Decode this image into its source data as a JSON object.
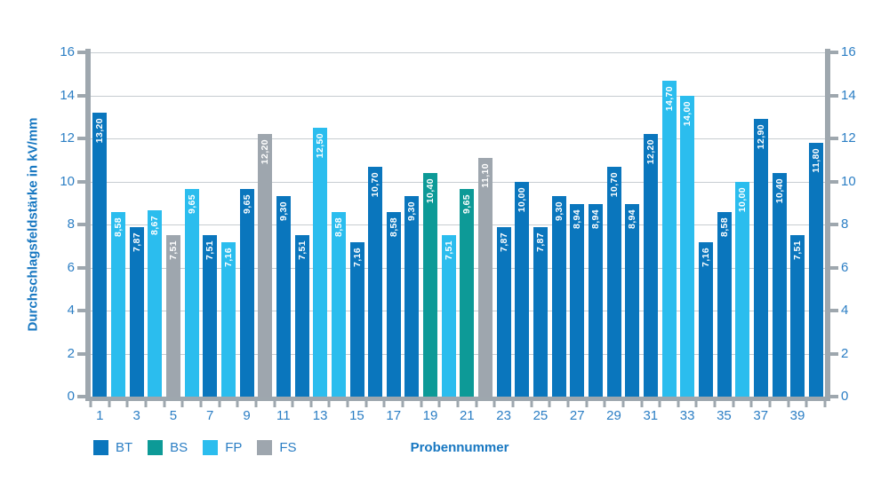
{
  "chart_data": {
    "type": "bar",
    "title": "",
    "ylabel": "Durchschlagsfeldstärke in kV/mm",
    "xlabel": "Probennummer",
    "ylim": [
      0,
      16
    ],
    "yticks": [
      0,
      2,
      4,
      6,
      8,
      10,
      12,
      14,
      16
    ],
    "grid": "horizontal gridlines at even values, dual y-axes (left and right)",
    "legend_position": "bottom-left",
    "legend": [
      "BT",
      "BS",
      "FP",
      "FS"
    ],
    "series_colors": {
      "BT": "#0A76BD",
      "BS": "#0D9A97",
      "FP": "#2BBDEE",
      "FS": "#9EA6AE"
    },
    "x_tick_labels": [
      "1",
      "3",
      "5",
      "7",
      "9",
      "11",
      "13",
      "15",
      "17",
      "19",
      "21",
      "23",
      "25",
      "27",
      "29",
      "31",
      "33",
      "35",
      "37",
      "39"
    ],
    "bars": [
      {
        "probe": 1,
        "series": "BT",
        "value": 13.2,
        "label": "13,20"
      },
      {
        "probe": 2,
        "series": "FP",
        "value": 8.58,
        "label": "8,58"
      },
      {
        "probe": 3,
        "series": "BT",
        "value": 7.87,
        "label": "7,87"
      },
      {
        "probe": 4,
        "series": "FP",
        "value": 8.67,
        "label": "8,67"
      },
      {
        "probe": 5,
        "series": "FS",
        "value": 7.51,
        "label": "7,51"
      },
      {
        "probe": 6,
        "series": "FP",
        "value": 9.65,
        "label": "9,65"
      },
      {
        "probe": 7,
        "series": "BT",
        "value": 7.51,
        "label": "7,51"
      },
      {
        "probe": 8,
        "series": "FP",
        "value": 7.16,
        "label": "7,16"
      },
      {
        "probe": 9,
        "series": "BT",
        "value": 9.65,
        "label": "9,65"
      },
      {
        "probe": 10,
        "series": "FS",
        "value": 12.2,
        "label": "12,20"
      },
      {
        "probe": 11,
        "series": "BT",
        "value": 9.3,
        "label": "9,30"
      },
      {
        "probe": 12,
        "series": "BT",
        "value": 7.51,
        "label": "7,51"
      },
      {
        "probe": 13,
        "series": "FP",
        "value": 12.5,
        "label": "12,50"
      },
      {
        "probe": 14,
        "series": "FP",
        "value": 8.58,
        "label": "8,58"
      },
      {
        "probe": 15,
        "series": "BT",
        "value": 7.16,
        "label": "7,16"
      },
      {
        "probe": 16,
        "series": "BT",
        "value": 10.7,
        "label": "10,70"
      },
      {
        "probe": 17,
        "series": "BT",
        "value": 8.58,
        "label": "8,58"
      },
      {
        "probe": 18,
        "series": "BT",
        "value": 9.3,
        "label": "9,30"
      },
      {
        "probe": 19,
        "series": "BS",
        "value": 10.4,
        "label": "10,40"
      },
      {
        "probe": 20,
        "series": "FP",
        "value": 7.51,
        "label": "7,51"
      },
      {
        "probe": 21,
        "series": "BS",
        "value": 9.65,
        "label": "9,65"
      },
      {
        "probe": 22,
        "series": "FS",
        "value": 11.1,
        "label": "11,10"
      },
      {
        "probe": 23,
        "series": "BT",
        "value": 7.87,
        "label": "7,87"
      },
      {
        "probe": 24,
        "series": "BT",
        "value": 10.0,
        "label": "10,00"
      },
      {
        "probe": 25,
        "series": "BT",
        "value": 7.87,
        "label": "7,87"
      },
      {
        "probe": 26,
        "series": "BT",
        "value": 9.3,
        "label": "9,30"
      },
      {
        "probe": 27,
        "series": "BT",
        "value": 8.94,
        "label": "8,94"
      },
      {
        "probe": 28,
        "series": "BT",
        "value": 8.94,
        "label": "8,94"
      },
      {
        "probe": 29,
        "series": "BT",
        "value": 10.7,
        "label": "10,70"
      },
      {
        "probe": 30,
        "series": "BT",
        "value": 8.94,
        "label": "8,94"
      },
      {
        "probe": 31,
        "series": "BT",
        "value": 12.2,
        "label": "12,20"
      },
      {
        "probe": 32,
        "series": "FP",
        "value": 14.7,
        "label": "14,70"
      },
      {
        "probe": 33,
        "series": "FP",
        "value": 14.0,
        "label": "14,00"
      },
      {
        "probe": 34,
        "series": "BT",
        "value": 7.16,
        "label": "7,16"
      },
      {
        "probe": 35,
        "series": "BT",
        "value": 8.58,
        "label": "8,58"
      },
      {
        "probe": 36,
        "series": "FP",
        "value": 10.0,
        "label": "10,00"
      },
      {
        "probe": 37,
        "series": "BT",
        "value": 12.9,
        "label": "12,90"
      },
      {
        "probe": 38,
        "series": "BT",
        "value": 10.4,
        "label": "10,40"
      },
      {
        "probe": 39,
        "series": "BT",
        "value": 7.51,
        "label": "7,51"
      },
      {
        "probe": 40,
        "series": "BT",
        "value": 11.8,
        "label": "11,80"
      }
    ]
  },
  "colors": {
    "background": "#FFFFFF",
    "axis": "#9EA7AE",
    "gridline": "#C7CCD1",
    "tick_label": "#2B7EC4",
    "axis_title": "#1777C1",
    "bar_value_label": "#FFFFFF"
  }
}
